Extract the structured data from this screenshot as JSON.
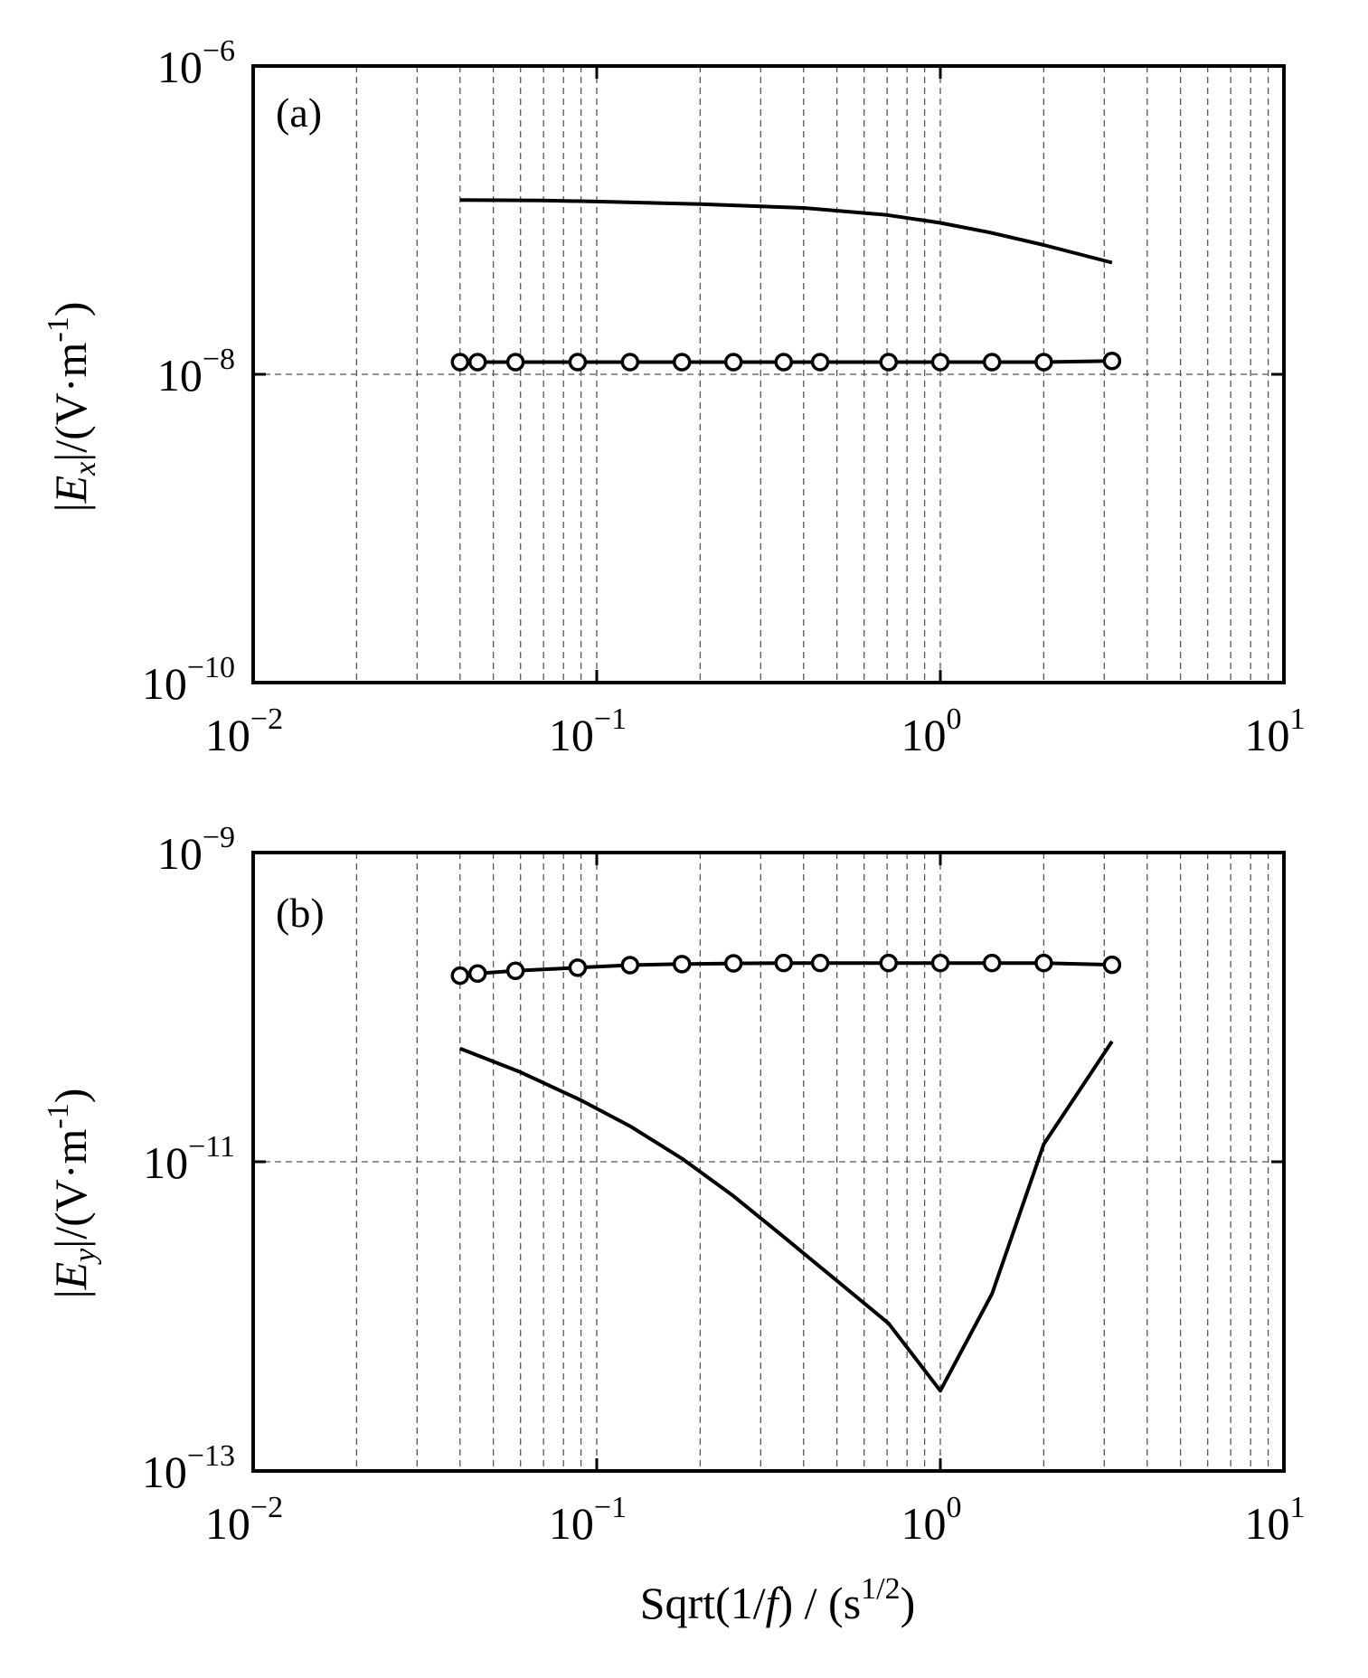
{
  "chart_data": [
    {
      "type": "line",
      "panel_label": "(a)",
      "x_scale": "log",
      "y_scale": "log",
      "xlim": [
        0.01,
        10
      ],
      "ylim": [
        1e-10,
        1e-06
      ],
      "grid": true,
      "ylabel": {
        "pre": "|",
        "var": "E",
        "sub": "x",
        "post": "|/(V·m",
        "sup": "-1",
        "end": ")"
      },
      "xlabel": {
        "pre": "Sqrt(1/",
        "var": "f",
        "mid": ") / (s",
        "sup": "1/2",
        "end": ")"
      },
      "x_ticks": [
        {
          "base": "10",
          "exp": "−2"
        },
        {
          "base": "10",
          "exp": "−1"
        },
        {
          "base": "10",
          "exp": "0"
        },
        {
          "base": "10",
          "exp": "1"
        }
      ],
      "y_ticks": [
        {
          "base": "10",
          "exp": "−10"
        },
        {
          "base": "10",
          "exp": "−8"
        },
        {
          "base": "10",
          "exp": "−6"
        }
      ],
      "series": [
        {
          "marker": "none",
          "x": [
            0.04,
            0.07,
            0.1,
            0.2,
            0.4,
            0.7,
            1.0,
            1.4,
            2.0,
            3.16
          ],
          "y": [
            1.35e-07,
            1.34e-07,
            1.32e-07,
            1.27e-07,
            1.2e-07,
            1.08e-07,
            9.6e-08,
            8.3e-08,
            6.9e-08,
            5.3e-08
          ]
        },
        {
          "marker": "circle",
          "x": [
            0.04,
            0.045,
            0.058,
            0.088,
            0.125,
            0.177,
            0.25,
            0.35,
            0.447,
            0.707,
            1.0,
            1.414,
            2.0,
            3.16
          ],
          "y": [
            1.2e-08,
            1.2e-08,
            1.2e-08,
            1.2e-08,
            1.2e-08,
            1.2e-08,
            1.2e-08,
            1.2e-08,
            1.2e-08,
            1.2e-08,
            1.2e-08,
            1.2e-08,
            1.2e-08,
            1.22e-08
          ]
        }
      ]
    },
    {
      "type": "line",
      "panel_label": "(b)",
      "x_scale": "log",
      "y_scale": "log",
      "xlim": [
        0.01,
        10
      ],
      "ylim": [
        1e-13,
        1e-09
      ],
      "grid": true,
      "ylabel": {
        "pre": "|",
        "var": "E",
        "sub": "y",
        "post": "|/(V·m",
        "sup": "-1",
        "end": ")"
      },
      "xlabel": {
        "pre": "Sqrt(1/",
        "var": "f",
        "mid": ") / (s",
        "sup": "1/2",
        "end": ")"
      },
      "x_ticks": [
        {
          "base": "10",
          "exp": "−2"
        },
        {
          "base": "10",
          "exp": "−1"
        },
        {
          "base": "10",
          "exp": "0"
        },
        {
          "base": "10",
          "exp": "1"
        }
      ],
      "y_ticks": [
        {
          "base": "10",
          "exp": "−13"
        },
        {
          "base": "10",
          "exp": "−11"
        },
        {
          "base": "10",
          "exp": "−9"
        }
      ],
      "series": [
        {
          "marker": "circle",
          "x": [
            0.04,
            0.045,
            0.058,
            0.088,
            0.125,
            0.177,
            0.25,
            0.35,
            0.447,
            0.707,
            1.0,
            1.414,
            2.0,
            3.16
          ],
          "y": [
            1.6e-10,
            1.65e-10,
            1.72e-10,
            1.8e-10,
            1.87e-10,
            1.9e-10,
            1.92e-10,
            1.93e-10,
            1.93e-10,
            1.93e-10,
            1.93e-10,
            1.93e-10,
            1.93e-10,
            1.88e-10
          ]
        },
        {
          "marker": "none",
          "x": [
            0.04,
            0.06,
            0.09,
            0.125,
            0.177,
            0.25,
            0.354,
            0.5,
            0.707,
            1.0,
            1.414,
            2.0,
            3.16
          ],
          "y": [
            5.4e-11,
            3.8e-11,
            2.5e-11,
            1.7e-11,
            1.05e-11,
            6e-12,
            3.2e-12,
            1.7e-12,
            9e-13,
            3.3e-13,
            1.4e-12,
            1.3e-11,
            6e-11
          ]
        }
      ]
    }
  ]
}
